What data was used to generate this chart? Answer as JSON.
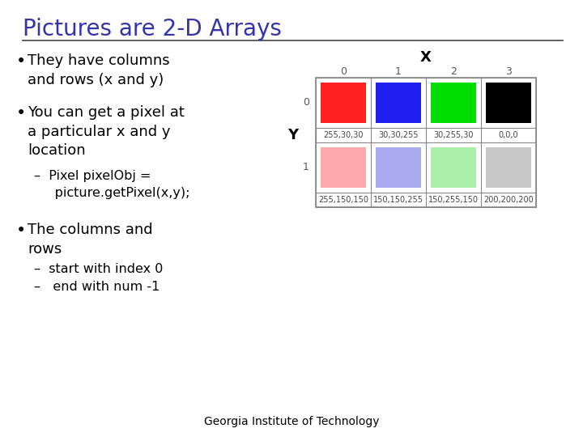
{
  "title": "Pictures are 2-D Arrays",
  "title_color": "#3333aa",
  "background_color": "#ffffff",
  "footer": "Georgia Institute of Technology",
  "grid_colors_row0": [
    "#ff2020",
    "#2020ee",
    "#00dd00",
    "#000000"
  ],
  "grid_colors_row1": [
    "#ffaaaa",
    "#aaaaee",
    "#aaeeaa",
    "#c8c8c8"
  ],
  "grid_labels_row0": [
    "255,30,30",
    "30,30,255",
    "30,255,30",
    "0,0,0"
  ],
  "grid_labels_row1": [
    "255,150,150",
    "150,150,255",
    "150,255,150",
    "200,200,200"
  ],
  "col_headers": [
    "0",
    "1",
    "2",
    "3"
  ],
  "row_headers": [
    "0",
    "1"
  ],
  "x_label": "X",
  "y_label": "Y",
  "title_fontsize": 20,
  "body_fontsize": 13,
  "sub_fontsize": 11.5,
  "footer_fontsize": 10
}
